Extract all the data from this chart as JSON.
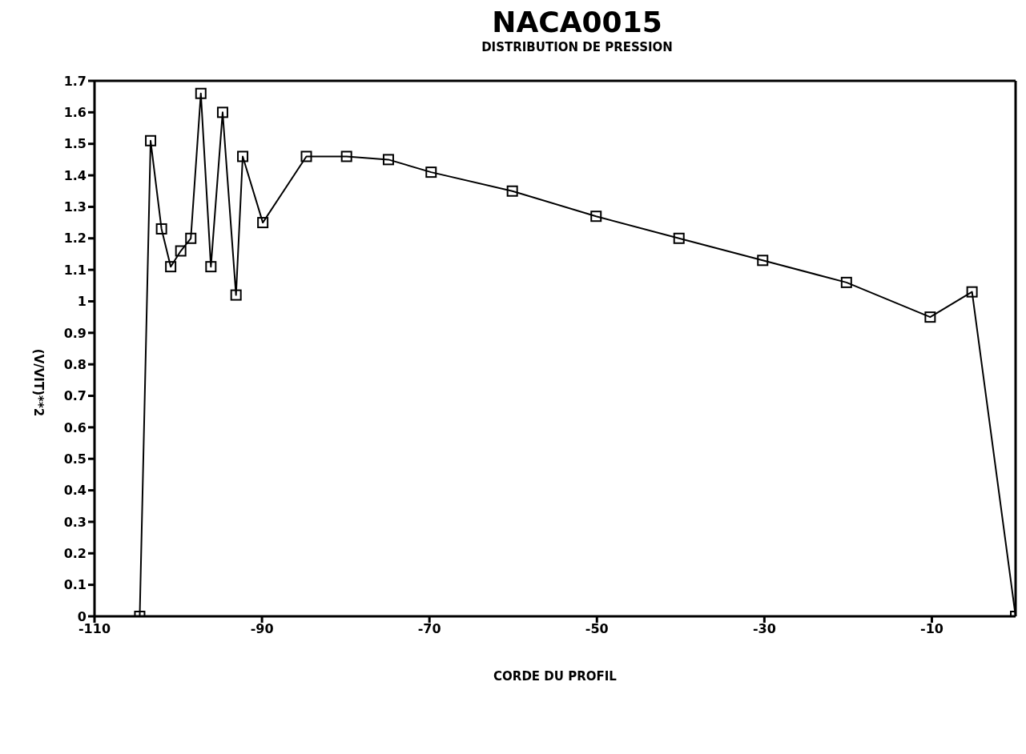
{
  "chart_data": {
    "type": "line",
    "title": "NACA0015",
    "subtitle": "DISTRIBUTION DE PRESSION",
    "xlabel": "CORDE DU PROFIL",
    "ylabel": "(V/VIT)**2",
    "x": [
      -104.6,
      -103.3,
      -102.0,
      -100.9,
      -99.7,
      -98.5,
      -97.3,
      -96.1,
      -94.7,
      -93.1,
      -92.3,
      -89.9,
      -84.7,
      -79.9,
      -74.9,
      -69.8,
      -60.1,
      -50.1,
      -40.2,
      -30.2,
      -20.2,
      -10.2,
      -5.2,
      0
    ],
    "series": [
      {
        "color": "#000000",
        "values": [
          0,
          1.51,
          1.23,
          1.11,
          1.16,
          1.2,
          1.66,
          1.11,
          1.6,
          1.02,
          1.46,
          1.25,
          1.46,
          1.46,
          1.45,
          1.41,
          1.35,
          1.27,
          1.2,
          1.13,
          1.06,
          0.95,
          1.03,
          0
        ]
      }
    ],
    "xlim": [
      -110,
      0
    ],
    "xticks": [
      -110,
      -90,
      -70,
      -50,
      -30,
      -10
    ],
    "ylim": [
      0,
      1.7
    ],
    "yticks": [
      0,
      0.1,
      0.2,
      0.3,
      0.4,
      0.5,
      0.6,
      0.7,
      0.8,
      0.9,
      1,
      1.1,
      1.2,
      1.3,
      1.4,
      1.5,
      1.6,
      1.7
    ],
    "marker": "square",
    "line_style": "solid"
  }
}
